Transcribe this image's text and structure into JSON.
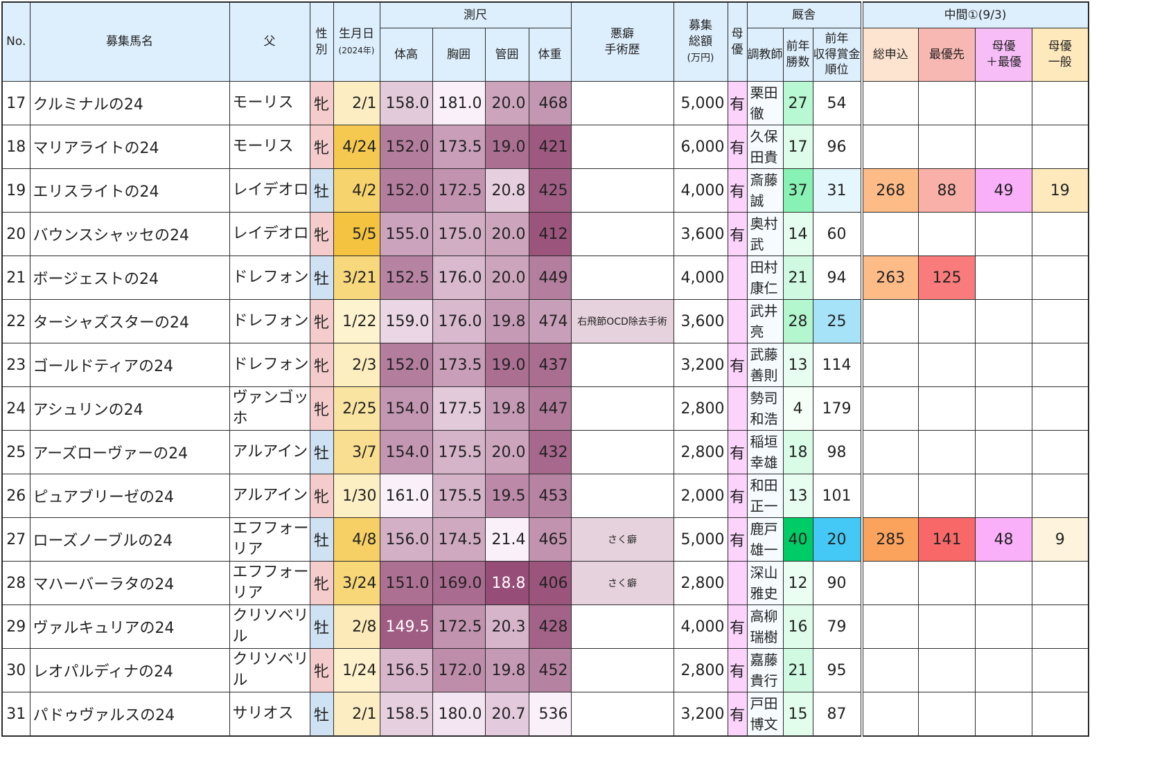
{
  "header": {
    "no": "No.",
    "name": "募集馬名",
    "sire": "父",
    "sex_line1": "性",
    "sex_line2": "別",
    "birth": "生月日",
    "birth_sub": "(2024年)",
    "measure_group": "測尺",
    "height": "体高",
    "chest": "胸囲",
    "cannon": "管囲",
    "weight": "体重",
    "defect_line1": "悪癖",
    "defect_line2": "手術歴",
    "total_line1": "募集",
    "total_line2": "総額",
    "total_unit": "(万円)",
    "mare_pref_line1": "母",
    "mare_pref_line2": "優",
    "stable_group": "厩舎",
    "trainer": "調教師",
    "wins_line1": "前年",
    "wins_line2": "勝数",
    "rank_line1": "前年",
    "rank_line2": "収得賞金",
    "rank_line3": "順位",
    "mid_group": "中間①(9/3)",
    "total_apps": "総申込",
    "top_priority": "最優先",
    "mare_top_line1": "母優",
    "mare_top_line2": "＋最優",
    "mare_gen_line1": "母優",
    "mare_gen_line2": "一般"
  },
  "colors": {
    "header_bg": "#ddeefc",
    "filly": "#f4cccc",
    "colt": "#cfe2f3",
    "mare_pref": "#fbd3fb",
    "trainer_bg": "#f5fbff"
  },
  "rows": [
    {
      "no": "17",
      "name": "クルミナルの24",
      "sire": "モーリス",
      "sex": "牝",
      "birth": "2/1",
      "height": "158.0",
      "chest": "181.0",
      "cannon": "20.0",
      "weight": "468",
      "defect": "",
      "total": "5,000",
      "mare": "有",
      "trainer": "栗田徹",
      "wins": "27",
      "rank": "54",
      "apps": "",
      "top": "",
      "mtop": "",
      "mgen": ""
    },
    {
      "no": "18",
      "name": "マリアライトの24",
      "sire": "モーリス",
      "sex": "牝",
      "birth": "4/24",
      "height": "152.0",
      "chest": "173.5",
      "cannon": "19.0",
      "weight": "421",
      "defect": "",
      "total": "6,000",
      "mare": "有",
      "trainer": "久保田貴",
      "wins": "17",
      "rank": "96",
      "apps": "",
      "top": "",
      "mtop": "",
      "mgen": ""
    },
    {
      "no": "19",
      "name": "エリスライトの24",
      "sire": "レイデオロ",
      "sex": "牡",
      "birth": "4/2",
      "height": "152.0",
      "chest": "172.5",
      "cannon": "20.8",
      "weight": "425",
      "defect": "",
      "total": "4,000",
      "mare": "有",
      "trainer": "斎藤誠",
      "wins": "37",
      "rank": "31",
      "apps": "268",
      "top": "88",
      "mtop": "49",
      "mgen": "19"
    },
    {
      "no": "20",
      "name": "バウンスシャッセの24",
      "sire": "レイデオロ",
      "sex": "牝",
      "birth": "5/5",
      "height": "155.0",
      "chest": "175.0",
      "cannon": "20.0",
      "weight": "412",
      "defect": "",
      "total": "3,600",
      "mare": "有",
      "trainer": "奥村武",
      "wins": "14",
      "rank": "60",
      "apps": "",
      "top": "",
      "mtop": "",
      "mgen": ""
    },
    {
      "no": "21",
      "name": "ボージェストの24",
      "sire": "ドレフォン",
      "sex": "牡",
      "birth": "3/21",
      "height": "152.5",
      "chest": "176.0",
      "cannon": "20.0",
      "weight": "449",
      "defect": "",
      "total": "4,000",
      "mare": "",
      "trainer": "田村康仁",
      "wins": "21",
      "rank": "94",
      "apps": "263",
      "top": "125",
      "mtop": "",
      "mgen": ""
    },
    {
      "no": "22",
      "name": "ターシャズスターの24",
      "sire": "ドレフォン",
      "sex": "牝",
      "birth": "1/22",
      "height": "159.0",
      "chest": "176.0",
      "cannon": "19.8",
      "weight": "474",
      "defect": "右飛節OCD除去手術",
      "total": "3,600",
      "mare": "",
      "trainer": "武井亮",
      "wins": "28",
      "rank": "25",
      "apps": "",
      "top": "",
      "mtop": "",
      "mgen": ""
    },
    {
      "no": "23",
      "name": "ゴールドティアの24",
      "sire": "ドレフォン",
      "sex": "牝",
      "birth": "2/3",
      "height": "152.0",
      "chest": "173.5",
      "cannon": "19.0",
      "weight": "437",
      "defect": "",
      "total": "3,200",
      "mare": "有",
      "trainer": "武藤善則",
      "wins": "13",
      "rank": "114",
      "apps": "",
      "top": "",
      "mtop": "",
      "mgen": ""
    },
    {
      "no": "24",
      "name": "アシュリンの24",
      "sire": "ヴァンゴッホ",
      "sex": "牝",
      "birth": "2/25",
      "height": "154.0",
      "chest": "177.5",
      "cannon": "19.8",
      "weight": "447",
      "defect": "",
      "total": "2,800",
      "mare": "",
      "trainer": "勢司和浩",
      "wins": "4",
      "rank": "179",
      "apps": "",
      "top": "",
      "mtop": "",
      "mgen": ""
    },
    {
      "no": "25",
      "name": "アーズローヴァーの24",
      "sire": "アルアイン",
      "sex": "牡",
      "birth": "3/7",
      "height": "154.0",
      "chest": "175.5",
      "cannon": "20.0",
      "weight": "432",
      "defect": "",
      "total": "2,800",
      "mare": "有",
      "trainer": "稲垣幸雄",
      "wins": "18",
      "rank": "98",
      "apps": "",
      "top": "",
      "mtop": "",
      "mgen": ""
    },
    {
      "no": "26",
      "name": "ピュアブリーゼの24",
      "sire": "アルアイン",
      "sex": "牝",
      "birth": "1/30",
      "height": "161.0",
      "chest": "175.5",
      "cannon": "19.5",
      "weight": "453",
      "defect": "",
      "total": "2,000",
      "mare": "有",
      "trainer": "和田正一",
      "wins": "13",
      "rank": "101",
      "apps": "",
      "top": "",
      "mtop": "",
      "mgen": ""
    },
    {
      "no": "27",
      "name": "ローズノーブルの24",
      "sire": "エフフォーリア",
      "sex": "牡",
      "birth": "4/8",
      "height": "156.0",
      "chest": "174.5",
      "cannon": "21.4",
      "weight": "465",
      "defect": "さく癖",
      "total": "5,000",
      "mare": "有",
      "trainer": "鹿戸雄一",
      "wins": "40",
      "rank": "20",
      "apps": "285",
      "top": "141",
      "mtop": "48",
      "mgen": "9"
    },
    {
      "no": "28",
      "name": "マハーバーラタの24",
      "sire": "エフフォーリア",
      "sex": "牝",
      "birth": "3/24",
      "height": "151.0",
      "chest": "169.0",
      "cannon": "18.8",
      "weight": "406",
      "defect": "さく癖",
      "total": "2,800",
      "mare": "",
      "trainer": "深山雅史",
      "wins": "12",
      "rank": "90",
      "apps": "",
      "top": "",
      "mtop": "",
      "mgen": ""
    },
    {
      "no": "29",
      "name": "ヴァルキュリアの24",
      "sire": "クリソベリル",
      "sex": "牡",
      "birth": "2/8",
      "height": "149.5",
      "chest": "172.5",
      "cannon": "20.3",
      "weight": "428",
      "defect": "",
      "total": "4,000",
      "mare": "有",
      "trainer": "高柳瑞樹",
      "wins": "16",
      "rank": "79",
      "apps": "",
      "top": "",
      "mtop": "",
      "mgen": ""
    },
    {
      "no": "30",
      "name": "レオパルディナの24",
      "sire": "クリソベリル",
      "sex": "牝",
      "birth": "1/24",
      "height": "156.5",
      "chest": "172.0",
      "cannon": "19.8",
      "weight": "452",
      "defect": "",
      "total": "2,800",
      "mare": "有",
      "trainer": "嘉藤貴行",
      "wins": "21",
      "rank": "95",
      "apps": "",
      "top": "",
      "mtop": "",
      "mgen": ""
    },
    {
      "no": "31",
      "name": "パドゥヴァルスの24",
      "sire": "サリオス",
      "sex": "牡",
      "birth": "2/1",
      "height": "158.5",
      "chest": "180.0",
      "cannon": "20.7",
      "weight": "536",
      "defect": "",
      "total": "3,200",
      "mare": "有",
      "trainer": "戸田博文",
      "wins": "15",
      "rank": "87",
      "apps": "",
      "top": "",
      "mtop": "",
      "mgen": ""
    }
  ]
}
